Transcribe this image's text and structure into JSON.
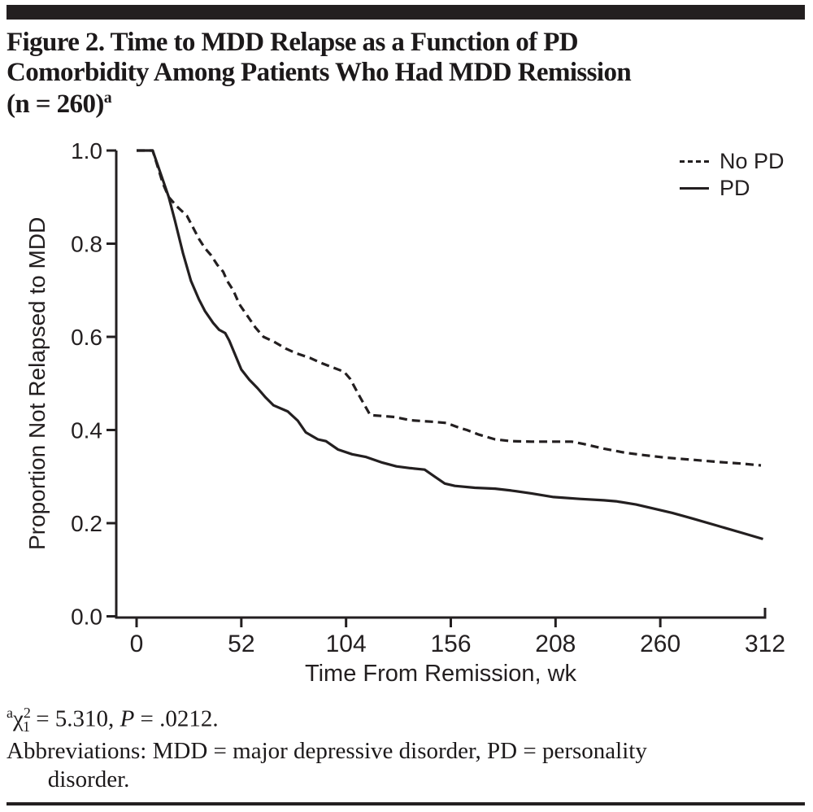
{
  "figure": {
    "title": {
      "line1": "Figure 2. Time to MDD Relapse as a Function of PD",
      "line2": "Comorbidity Among Patients Who Had MDD Remission",
      "line3": "(n = 260)",
      "marker": "a"
    },
    "legend": [
      {
        "label": "No PD",
        "style": "dashed"
      },
      {
        "label": "PD",
        "style": "solid"
      }
    ],
    "footnotes": {
      "marker": "a",
      "chi": "χ",
      "chi_sup": "2",
      "chi_sub": "1",
      "stat": " = 5.310, ",
      "p_label": "P",
      "p_value": " = .0212.",
      "abbreviations": "Abbreviations: MDD = major depressive disorder, PD = personality\n       disorder."
    },
    "colors": {
      "ink": "#231f20",
      "background": "#ffffff"
    }
  },
  "chart_data": {
    "type": "line",
    "title": "Time to MDD Relapse as a Function of PD Comorbidity (Kaplan-Meier survival curves)",
    "xlabel": "Time From Remission, wk",
    "ylabel": "Proportion Not Relapsed to MDD",
    "xlim": [
      0,
      312
    ],
    "ylim": [
      0,
      1
    ],
    "grid": false,
    "legend_position": "top-right",
    "ink_color": "#231f20",
    "x_ticks": [
      {
        "v": 0,
        "label": "0"
      },
      {
        "v": 52,
        "label": "52"
      },
      {
        "v": 104,
        "label": "104"
      },
      {
        "v": 156,
        "label": "156"
      },
      {
        "v": 208,
        "label": "208"
      },
      {
        "v": 260,
        "label": "260"
      },
      {
        "v": 312,
        "label": "312"
      }
    ],
    "y_ticks": [
      {
        "v": 0.0,
        "label": "0.0"
      },
      {
        "v": 0.2,
        "label": "0.2"
      },
      {
        "v": 0.4,
        "label": "0.4"
      },
      {
        "v": 0.6,
        "label": "0.6"
      },
      {
        "v": 0.8,
        "label": "0.8"
      },
      {
        "v": 1.0,
        "label": "1.0"
      }
    ],
    "series": [
      {
        "name": "No PD",
        "style": "dashed",
        "points": [
          [
            0,
            1.0
          ],
          [
            8,
            1.0
          ],
          [
            13,
            0.93
          ],
          [
            16,
            0.9
          ],
          [
            20,
            0.88
          ],
          [
            25,
            0.86
          ],
          [
            28,
            0.835
          ],
          [
            31,
            0.81
          ],
          [
            34,
            0.79
          ],
          [
            37,
            0.775
          ],
          [
            40,
            0.755
          ],
          [
            43,
            0.74
          ],
          [
            45,
            0.72
          ],
          [
            48,
            0.7
          ],
          [
            51,
            0.67
          ],
          [
            55,
            0.645
          ],
          [
            59,
            0.62
          ],
          [
            63,
            0.6
          ],
          [
            68,
            0.59
          ],
          [
            74,
            0.575
          ],
          [
            79,
            0.565
          ],
          [
            86,
            0.555
          ],
          [
            91,
            0.545
          ],
          [
            97,
            0.535
          ],
          [
            103,
            0.525
          ],
          [
            106,
            0.51
          ],
          [
            111,
            0.47
          ],
          [
            116,
            0.432
          ],
          [
            122,
            0.43
          ],
          [
            128,
            0.428
          ],
          [
            136,
            0.421
          ],
          [
            146,
            0.418
          ],
          [
            154,
            0.415
          ],
          [
            160,
            0.405
          ],
          [
            164,
            0.4
          ],
          [
            170,
            0.39
          ],
          [
            178,
            0.38
          ],
          [
            186,
            0.376
          ],
          [
            196,
            0.375
          ],
          [
            206,
            0.375
          ],
          [
            216,
            0.375
          ],
          [
            222,
            0.37
          ],
          [
            232,
            0.36
          ],
          [
            243,
            0.351
          ],
          [
            252,
            0.346
          ],
          [
            262,
            0.341
          ],
          [
            276,
            0.336
          ],
          [
            290,
            0.331
          ],
          [
            300,
            0.328
          ],
          [
            310,
            0.324
          ]
        ]
      },
      {
        "name": "PD",
        "style": "solid",
        "points": [
          [
            0,
            1.0
          ],
          [
            8,
            1.0
          ],
          [
            12,
            0.95
          ],
          [
            16,
            0.9
          ],
          [
            19,
            0.85
          ],
          [
            23,
            0.78
          ],
          [
            27,
            0.72
          ],
          [
            31,
            0.68
          ],
          [
            34,
            0.655
          ],
          [
            38,
            0.63
          ],
          [
            41,
            0.615
          ],
          [
            44,
            0.608
          ],
          [
            46,
            0.592
          ],
          [
            52,
            0.53
          ],
          [
            56,
            0.508
          ],
          [
            60,
            0.49
          ],
          [
            64,
            0.47
          ],
          [
            68,
            0.453
          ],
          [
            75,
            0.44
          ],
          [
            80,
            0.42
          ],
          [
            84,
            0.395
          ],
          [
            90,
            0.38
          ],
          [
            94,
            0.376
          ],
          [
            100,
            0.358
          ],
          [
            107,
            0.348
          ],
          [
            114,
            0.342
          ],
          [
            122,
            0.33
          ],
          [
            129,
            0.322
          ],
          [
            136,
            0.318
          ],
          [
            143,
            0.315
          ],
          [
            148,
            0.3
          ],
          [
            153,
            0.285
          ],
          [
            158,
            0.28
          ],
          [
            168,
            0.276
          ],
          [
            178,
            0.274
          ],
          [
            186,
            0.27
          ],
          [
            196,
            0.264
          ],
          [
            207,
            0.256
          ],
          [
            220,
            0.252
          ],
          [
            232,
            0.249
          ],
          [
            238,
            0.247
          ],
          [
            248,
            0.24
          ],
          [
            258,
            0.23
          ],
          [
            266,
            0.222
          ],
          [
            276,
            0.21
          ],
          [
            288,
            0.195
          ],
          [
            300,
            0.18
          ],
          [
            311,
            0.166
          ]
        ]
      }
    ]
  }
}
